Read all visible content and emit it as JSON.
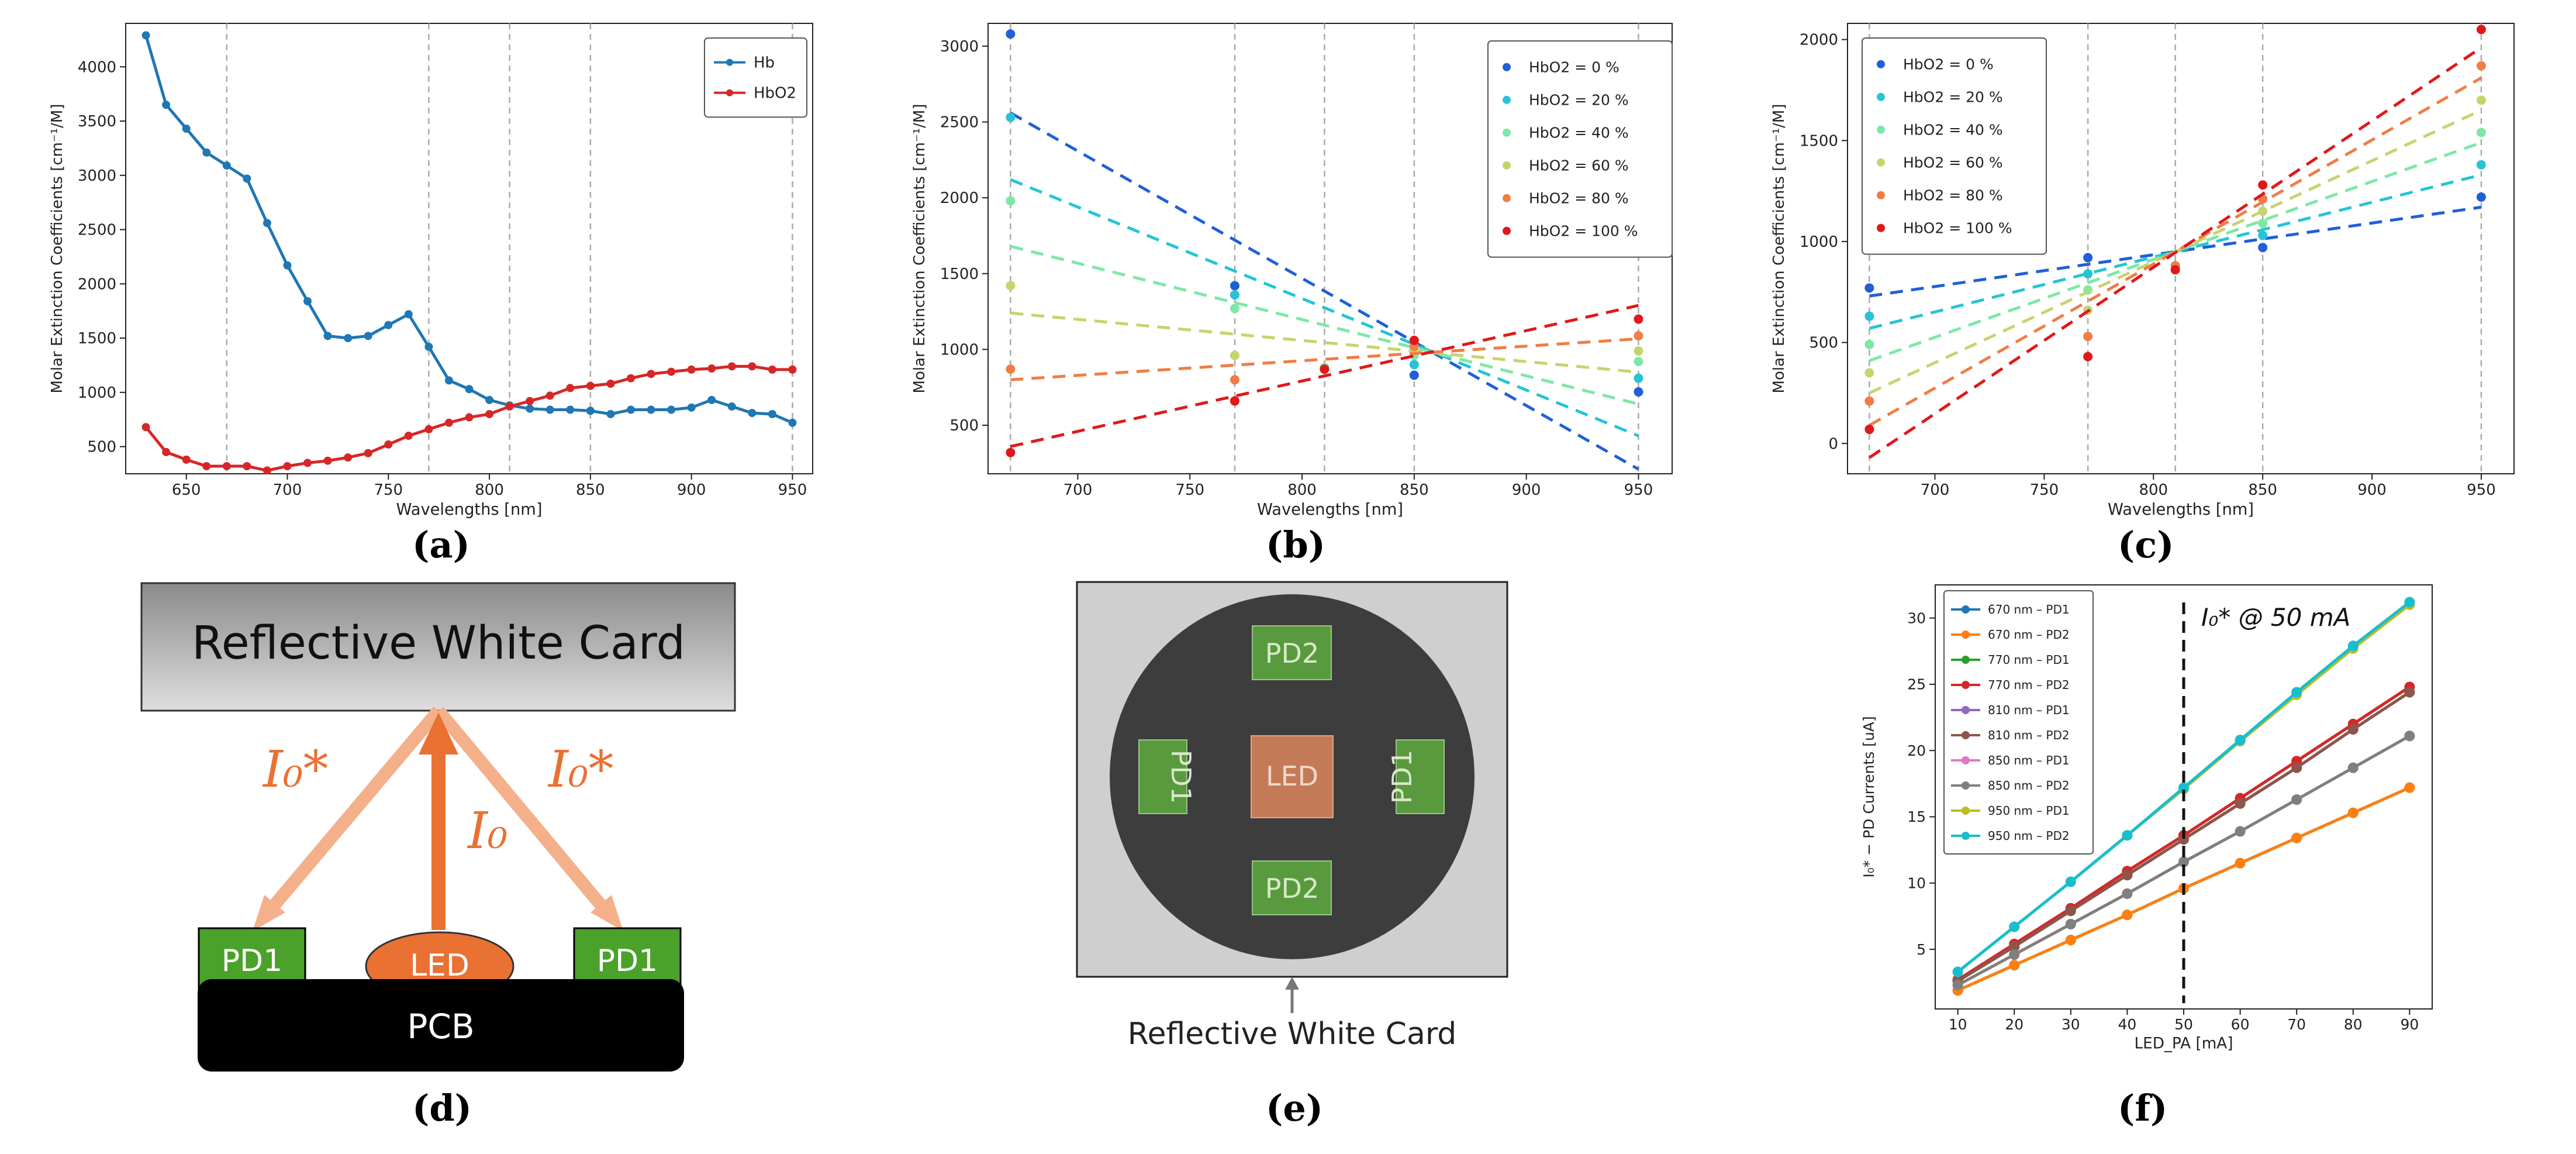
{
  "panel_labels": {
    "a": "(a)",
    "b": "(b)",
    "c": "(c)",
    "d": "(d)",
    "e": "(e)",
    "f": "(f)"
  },
  "colors": {
    "hb": "#1f77b4",
    "hbo2": "#d62728",
    "hbo2_0": "#1f5fd9",
    "hbo2_20": "#25c4d6",
    "hbo2_40": "#7de8a6",
    "hbo2_60": "#c6d46e",
    "hbo2_80": "#f07d45",
    "hbo2_100": "#e0181b",
    "led": "#e97132",
    "pd": "#4aa22a",
    "arrow_light": "#f4b08a",
    "arrow_dark": "#e97132"
  },
  "chart_data": [
    {
      "id": "a",
      "type": "line",
      "xlabel": "Wavelengths [nm]",
      "ylabel": "Molar Extinction Coefficients [cm⁻¹/M]",
      "xlim": [
        620,
        960
      ],
      "ylim": [
        250,
        4400
      ],
      "xticks": [
        650,
        700,
        750,
        800,
        850,
        900,
        950
      ],
      "yticks": [
        500,
        1000,
        1500,
        2000,
        2500,
        3000,
        3500,
        4000
      ],
      "vlines": [
        670,
        770,
        810,
        850,
        950
      ],
      "legend_position": "top-right",
      "series": [
        {
          "name": "Hb",
          "color": "#1f77b4",
          "x": [
            630,
            640,
            650,
            660,
            670,
            680,
            690,
            700,
            710,
            720,
            730,
            740,
            750,
            760,
            770,
            780,
            790,
            800,
            810,
            820,
            830,
            840,
            850,
            860,
            870,
            880,
            890,
            900,
            910,
            920,
            930,
            940,
            950
          ],
          "y": [
            4290,
            3650,
            3430,
            3210,
            3090,
            2970,
            2560,
            2170,
            1840,
            1520,
            1500,
            1520,
            1620,
            1720,
            1420,
            1110,
            1030,
            930,
            880,
            850,
            840,
            840,
            830,
            800,
            840,
            840,
            840,
            860,
            930,
            870,
            810,
            800,
            720
          ]
        },
        {
          "name": "HbO2",
          "color": "#d62728",
          "x": [
            630,
            640,
            650,
            660,
            670,
            680,
            690,
            700,
            710,
            720,
            730,
            740,
            750,
            760,
            770,
            780,
            790,
            800,
            810,
            820,
            830,
            840,
            850,
            860,
            870,
            880,
            890,
            900,
            910,
            920,
            930,
            940,
            950
          ],
          "y": [
            680,
            450,
            380,
            320,
            320,
            320,
            280,
            320,
            350,
            370,
            400,
            440,
            520,
            600,
            660,
            720,
            770,
            800,
            870,
            920,
            970,
            1040,
            1060,
            1080,
            1130,
            1170,
            1190,
            1210,
            1220,
            1240,
            1240,
            1210,
            1210
          ]
        }
      ]
    },
    {
      "id": "b",
      "type": "scatter+line",
      "xlabel": "Wavelengths [nm]",
      "ylabel": "Molar Extinction Coefficients [cm⁻¹/M]",
      "xlim": [
        660,
        965
      ],
      "ylim": [
        180,
        3150
      ],
      "xticks": [
        700,
        750,
        800,
        850,
        900,
        950
      ],
      "yticks": [
        500,
        1000,
        1500,
        2000,
        2500,
        3000
      ],
      "vlines": [
        670,
        770,
        810,
        850,
        950
      ],
      "legend_position": "top-right",
      "x": [
        670,
        770,
        810,
        850,
        950
      ],
      "series": [
        {
          "name": "HbO2 = 0 %",
          "color": "#1f5fd9",
          "points": [
            3080,
            1420,
            880,
            830,
            720
          ],
          "fit": [
            2560,
            210
          ]
        },
        {
          "name": "HbO2 = 20 %",
          "color": "#25c4d6",
          "points": [
            2530,
            1360,
            880,
            900,
            810
          ],
          "fit": [
            2120,
            430
          ]
        },
        {
          "name": "HbO2 = 40 %",
          "color": "#7de8a6",
          "points": [
            1980,
            1270,
            880,
            960,
            920
          ],
          "fit": [
            1680,
            640
          ]
        },
        {
          "name": "HbO2 = 60 %",
          "color": "#c6d46e",
          "points": [
            1420,
            960,
            870,
            990,
            990
          ],
          "fit": [
            1240,
            850
          ]
        },
        {
          "name": "HbO2 = 80 %",
          "color": "#f07d45",
          "points": [
            870,
            800,
            870,
            1020,
            1090
          ],
          "fit": [
            800,
            1070
          ]
        },
        {
          "name": "HbO2 = 100 %",
          "color": "#e0181b",
          "points": [
            320,
            660,
            870,
            1060,
            1200
          ],
          "fit": [
            360,
            1290
          ]
        }
      ]
    },
    {
      "id": "c",
      "type": "scatter+line",
      "xlabel": "Wavelengths [nm]",
      "ylabel": "Molar Extinction Coefficients [cm⁻¹/M]",
      "xlim": [
        660,
        965
      ],
      "ylim": [
        -150,
        2080
      ],
      "xticks": [
        700,
        750,
        800,
        850,
        900,
        950
      ],
      "yticks": [
        0,
        500,
        1000,
        1500,
        2000
      ],
      "vlines": [
        670,
        770,
        810,
        850,
        950
      ],
      "legend_position": "top-left",
      "x": [
        670,
        770,
        810,
        850,
        950
      ],
      "series": [
        {
          "name": "HbO2 = 0 %",
          "color": "#1f5fd9",
          "points": [
            770,
            920,
            880,
            970,
            1220
          ],
          "fit": [
            730,
            1170
          ]
        },
        {
          "name": "HbO2 = 20 %",
          "color": "#25c4d6",
          "points": [
            630,
            840,
            880,
            1030,
            1380
          ],
          "fit": [
            570,
            1330
          ]
        },
        {
          "name": "HbO2 = 40 %",
          "color": "#7de8a6",
          "points": [
            490,
            760,
            880,
            1090,
            1540
          ],
          "fit": [
            410,
            1490
          ]
        },
        {
          "name": "HbO2 = 60 %",
          "color": "#c6d46e",
          "points": [
            350,
            660,
            880,
            1150,
            1700
          ],
          "fit": [
            250,
            1650
          ]
        },
        {
          "name": "HbO2 = 80 %",
          "color": "#f07d45",
          "points": [
            210,
            530,
            880,
            1210,
            1870
          ],
          "fit": [
            90,
            1810
          ]
        },
        {
          "name": "HbO2 = 100 %",
          "color": "#e0181b",
          "points": [
            70,
            430,
            860,
            1280,
            2050
          ],
          "fit": [
            -70,
            1960
          ]
        }
      ]
    },
    {
      "id": "f",
      "type": "line",
      "xlabel": "LED_PA [mA]",
      "ylabel": "I₀* − PD Currents [uA]",
      "xlim": [
        6,
        94
      ],
      "ylim": [
        0.5,
        32.5
      ],
      "xticks": [
        10,
        20,
        30,
        40,
        50,
        60,
        70,
        80,
        90
      ],
      "yticks": [
        5,
        10,
        15,
        20,
        25,
        30
      ],
      "annotation": {
        "text": "I₀* @ 50 mA",
        "x": 50
      },
      "legend_position": "top-left",
      "x": [
        10,
        20,
        30,
        40,
        50,
        60,
        70,
        80,
        90
      ],
      "series": [
        {
          "name": "670 nm – PD1",
          "color": "#1f77b4",
          "values": [
            1.9,
            3.8,
            5.7,
            7.6,
            9.6,
            11.5,
            13.4,
            15.3,
            17.2
          ]
        },
        {
          "name": "670 nm – PD2",
          "color": "#ff7f0e",
          "values": [
            1.9,
            3.8,
            5.7,
            7.6,
            9.6,
            11.5,
            13.4,
            15.3,
            17.2
          ]
        },
        {
          "name": "770 nm – PD1",
          "color": "#2ca02c",
          "values": [
            2.7,
            5.4,
            8.1,
            10.9,
            13.6,
            16.4,
            19.2,
            22.0,
            24.8
          ]
        },
        {
          "name": "770 nm – PD2",
          "color": "#d62728",
          "values": [
            2.7,
            5.4,
            8.1,
            10.9,
            13.6,
            16.4,
            19.2,
            22.0,
            24.8
          ]
        },
        {
          "name": "810 nm – PD1",
          "color": "#9467bd",
          "values": [
            2.6,
            5.2,
            7.9,
            10.6,
            13.3,
            16.0,
            18.7,
            21.6,
            24.4
          ]
        },
        {
          "name": "810 nm – PD2",
          "color": "#8c564b",
          "values": [
            2.6,
            5.2,
            7.9,
            10.6,
            13.3,
            16.0,
            18.7,
            21.6,
            24.4
          ]
        },
        {
          "name": "850 nm – PD1",
          "color": "#e377c2",
          "values": [
            2.3,
            4.6,
            6.9,
            9.2,
            11.6,
            13.9,
            16.3,
            18.7,
            21.1
          ]
        },
        {
          "name": "850 nm – PD2",
          "color": "#7f7f7f",
          "values": [
            2.3,
            4.6,
            6.9,
            9.2,
            11.6,
            13.9,
            16.3,
            18.7,
            21.1
          ]
        },
        {
          "name": "950 nm – PD1",
          "color": "#bcbd22",
          "values": [
            3.3,
            6.7,
            10.1,
            13.6,
            17.1,
            20.7,
            24.2,
            27.7,
            31.0
          ]
        },
        {
          "name": "950 nm – PD2",
          "color": "#17becf",
          "values": [
            3.3,
            6.7,
            10.1,
            13.6,
            17.2,
            20.8,
            24.4,
            27.9,
            31.2
          ]
        }
      ]
    }
  ],
  "diagram_d": {
    "card_label": "Reflective White Card",
    "left_beam_label": "I₀*",
    "center_beam_label": "I₀",
    "right_beam_label": "I₀*",
    "pd_left": "PD1",
    "pd_right": "PD1",
    "led": "LED",
    "pcb": "PCB"
  },
  "diagram_e": {
    "pd_top": "PD2",
    "pd_bottom": "PD2",
    "pd_left": "PD1",
    "pd_right": "PD1",
    "led": "LED",
    "caption": "Reflective White Card"
  }
}
